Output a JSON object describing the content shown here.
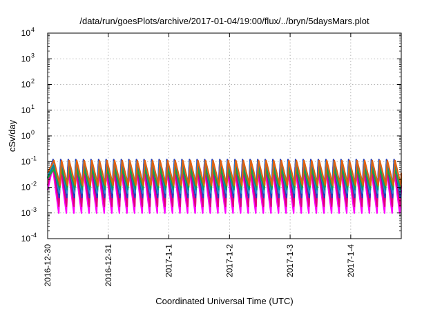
{
  "chart_data": {
    "type": "line",
    "title": "/data/run/goesPlots/archive/2017-01-04/19:00/flux/../bryn/5daysMars.plot",
    "xlabel": "Coordinated Universal Time (UTC)",
    "ylabel": "cSv/day",
    "y_scale": "log",
    "ylim": [
      0.0001,
      10000
    ],
    "xlim": [
      "2016-12-30T00:00",
      "2017-01-04T20:00"
    ],
    "grid": true,
    "legend": "none",
    "y_ticks": [
      {
        "value": 0.0001,
        "base": "10",
        "exp": "-4"
      },
      {
        "value": 0.001,
        "base": "10",
        "exp": "-3"
      },
      {
        "value": 0.01,
        "base": "10",
        "exp": "-2"
      },
      {
        "value": 0.1,
        "base": "10",
        "exp": "-1"
      },
      {
        "value": 1,
        "base": "10",
        "exp": "0"
      },
      {
        "value": 10,
        "base": "10",
        "exp": "1"
      },
      {
        "value": 100,
        "base": "10",
        "exp": "2"
      },
      {
        "value": 1000,
        "base": "10",
        "exp": "3"
      },
      {
        "value": 10000,
        "base": "10",
        "exp": "4"
      }
    ],
    "x_ticks": [
      {
        "value": "2016-12-30",
        "label": "2016-12-30"
      },
      {
        "value": "2016-12-31",
        "label": "2016-12-31"
      },
      {
        "value": "2017-01-01",
        "label": "2017-1-1"
      },
      {
        "value": "2017-01-02",
        "label": "2017-1-2"
      },
      {
        "value": "2017-01-03",
        "label": "2017-1-3"
      },
      {
        "value": "2017-01-04",
        "label": "2017-1-4"
      }
    ],
    "pattern": {
      "sawtooth_period_hours": 3,
      "peak_time_utc": [
        "2016-12-30T02:00",
        "2016-12-30T05:00",
        "2016-12-30T08:00",
        "2016-12-30T11:00",
        "2016-12-30T14:00",
        "2016-12-30T17:00",
        "2016-12-30T20:00",
        "2016-12-30T23:00",
        "2016-12-31T02:00",
        "2016-12-31T05:00",
        "2016-12-31T08:00",
        "2016-12-31T11:00",
        "2016-12-31T14:00",
        "2016-12-31T17:00",
        "2016-12-31T20:00",
        "2016-12-31T23:00",
        "2017-01-01T02:00",
        "2017-01-01T05:00",
        "2017-01-01T08:00",
        "2017-01-01T11:00",
        "2017-01-01T14:00",
        "2017-01-01T17:00",
        "2017-01-01T20:00",
        "2017-01-01T23:00",
        "2017-01-02T02:00",
        "2017-01-02T05:00",
        "2017-01-02T08:00",
        "2017-01-02T11:00",
        "2017-01-02T14:00",
        "2017-01-02T17:00",
        "2017-01-02T20:00",
        "2017-01-02T23:00",
        "2017-01-03T02:00",
        "2017-01-03T05:00",
        "2017-01-03T08:00",
        "2017-01-03T11:00",
        "2017-01-03T14:00",
        "2017-01-03T17:00",
        "2017-01-03T20:00",
        "2017-01-03T23:00",
        "2017-01-04T02:00",
        "2017-01-04T05:00",
        "2017-01-04T08:00",
        "2017-01-04T11:00",
        "2017-01-04T14:00",
        "2017-01-04T17:00"
      ]
    },
    "series": [
      {
        "color": "#ff00ff",
        "peak": 0.06,
        "trough": 0.001
      },
      {
        "color": "#e00080",
        "peak": 0.08,
        "trough": 0.0018
      },
      {
        "color": "#1f3fbf",
        "peak": 0.12,
        "trough": 0.004
      },
      {
        "color": "#2f8fd0",
        "peak": 0.1,
        "trough": 0.006
      },
      {
        "color": "#009090",
        "peak": 0.07,
        "trough": 0.008
      },
      {
        "color": "#20a040",
        "peak": 0.05,
        "trough": 0.01
      },
      {
        "color": "#e06010",
        "peak": 0.11,
        "trough": 0.012
      }
    ]
  }
}
